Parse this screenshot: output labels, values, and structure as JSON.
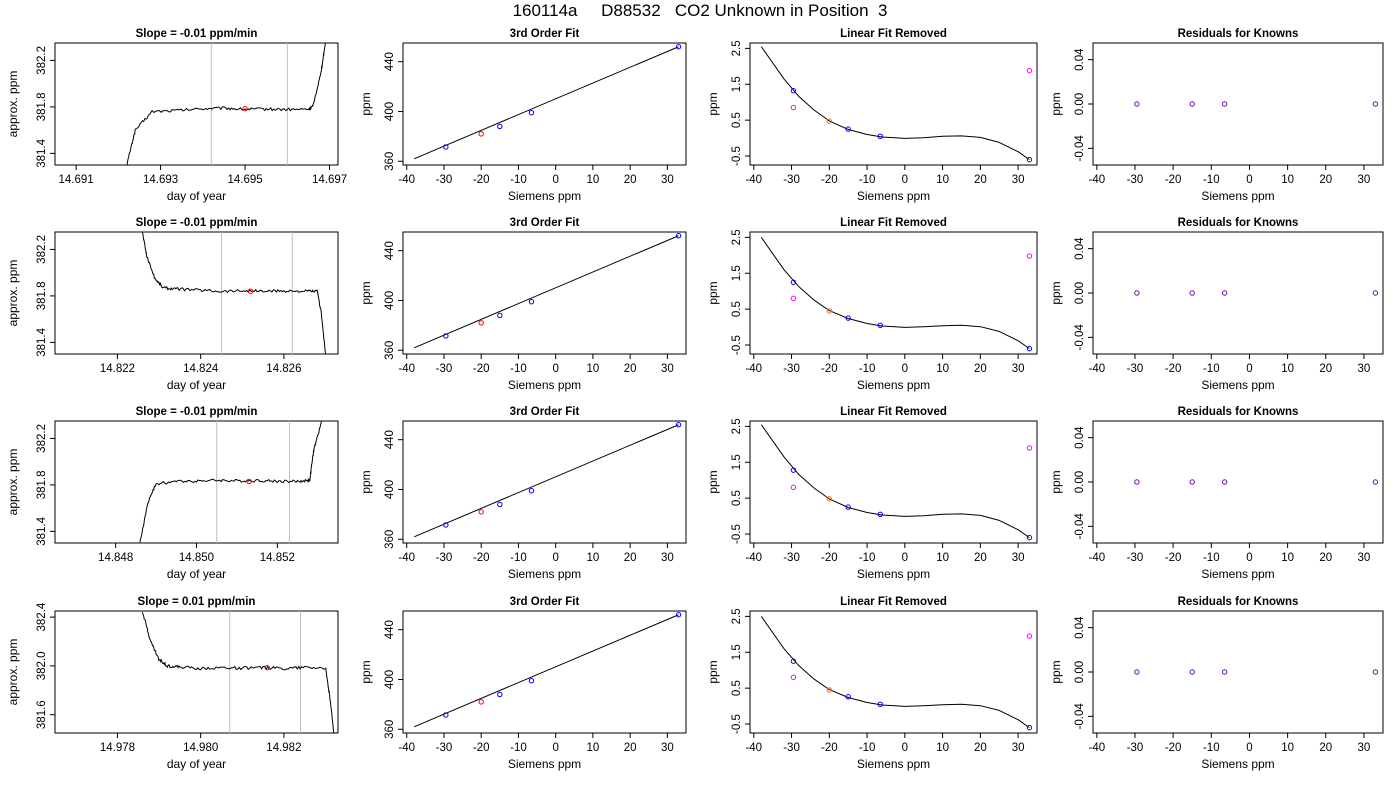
{
  "page": {
    "title": "160114a     D88532   CO2 Unknown in Position  3"
  },
  "styles": {
    "trace_color": "#000000",
    "axis_color": "#000000",
    "vline_color": "#bebebe",
    "marker_red": "#ff0000",
    "marker_blue": "#0000ff",
    "marker_magenta": "#ff00ff",
    "marker_purple": "#6a0dad"
  },
  "chart_data": [
    {
      "type": "line",
      "panel": "timeseries",
      "title": "Slope =  -0.01  ppm/min",
      "xlabel": "day of year",
      "ylabel": "approx. ppm",
      "xlim": [
        14.6905,
        14.6972
      ],
      "ylim": [
        381.3,
        382.35
      ],
      "xticks": [
        "14.691",
        "14.693",
        "14.695",
        "14.697"
      ],
      "xtick_values": [
        14.691,
        14.693,
        14.695,
        14.697
      ],
      "yticks": [
        "381.4",
        "381.8",
        "382.2"
      ],
      "ytick_values": [
        381.4,
        381.8,
        382.2
      ],
      "vlines": [
        14.6942,
        14.696
      ],
      "x": [
        14.6922,
        14.6924,
        14.6928,
        14.6934,
        14.694,
        14.6945,
        14.695,
        14.6955,
        14.696,
        14.6965,
        14.6966,
        14.6968,
        14.6969
      ],
      "y": [
        381.3,
        381.6,
        381.76,
        381.77,
        381.785,
        381.79,
        381.78,
        381.782,
        381.778,
        381.78,
        381.8,
        382.1,
        382.35
      ],
      "marker": {
        "x": 14.695,
        "y": 381.785
      }
    },
    {
      "type": "scatter",
      "panel": "fit",
      "title": "3rd Order Fit",
      "xlabel": "Siemens ppm",
      "ylabel": "ppm",
      "xlim": [
        -41,
        35
      ],
      "ylim": [
        357,
        455
      ],
      "xticks": [
        -40,
        -30,
        -20,
        -10,
        0,
        10,
        20,
        30
      ],
      "yticks": [
        360,
        400,
        440
      ],
      "line": [
        [
          -38,
          362
        ],
        [
          33,
          452
        ]
      ],
      "points_blue": [
        [
          -29.5,
          371.5
        ],
        [
          -15,
          388
        ],
        [
          -6.5,
          399
        ],
        [
          33,
          452
        ]
      ],
      "points_red": [
        [
          -20,
          382
        ]
      ]
    },
    {
      "type": "scatter",
      "panel": "linfit",
      "title": "Linear Fit Removed",
      "xlabel": "Siemens ppm",
      "ylabel": "ppm",
      "xlim": [
        -41,
        35
      ],
      "ylim": [
        -0.75,
        2.65
      ],
      "xticks": [
        -40,
        -30,
        -20,
        -10,
        0,
        10,
        20,
        30
      ],
      "yticks": [
        "-0.5",
        "0.5",
        "1.5",
        "2.5"
      ],
      "ytick_values": [
        -0.5,
        0.5,
        1.5,
        2.5
      ],
      "curve_knots": [
        [
          -38,
          2.55
        ],
        [
          -32,
          1.65
        ],
        [
          -28,
          1.15
        ],
        [
          -24,
          0.78
        ],
        [
          -20,
          0.48
        ],
        [
          -15,
          0.24
        ],
        [
          -10,
          0.1
        ],
        [
          -6,
          0.03
        ],
        [
          0,
          -0.01
        ],
        [
          5,
          0.01
        ],
        [
          10,
          0.05
        ],
        [
          15,
          0.06
        ],
        [
          20,
          0.02
        ],
        [
          25,
          -0.12
        ],
        [
          30,
          -0.38
        ],
        [
          33,
          -0.6
        ]
      ],
      "points_blue": [
        [
          -29.5,
          1.32
        ],
        [
          -15,
          0.25
        ],
        [
          -6.5,
          0.05
        ],
        [
          33,
          -0.6
        ]
      ],
      "points_orange": [
        [
          -20,
          0.47
        ]
      ],
      "points_magenta": [
        [
          -29.5,
          0.85
        ],
        [
          33,
          1.88
        ]
      ]
    },
    {
      "type": "scatter",
      "panel": "residuals",
      "title": "Residuals for Knowns",
      "xlabel": "Siemens ppm",
      "ylabel": "ppm",
      "xlim": [
        -41,
        35
      ],
      "ylim": [
        -0.055,
        0.055
      ],
      "xticks": [
        -40,
        -30,
        -20,
        -10,
        0,
        10,
        20,
        30
      ],
      "yticks": [
        "-0.04",
        "0.00",
        "0.04"
      ],
      "ytick_values": [
        -0.04,
        0.0,
        0.04
      ],
      "points_purple": [
        [
          -29.5,
          0
        ],
        [
          -15,
          0
        ],
        [
          -6.5,
          0
        ],
        [
          33,
          0
        ]
      ]
    },
    {
      "type": "line",
      "panel": "timeseries",
      "title": "Slope =  -0.01  ppm/min",
      "xlabel": "day of year",
      "ylabel": "approx. ppm",
      "xlim": [
        14.8205,
        14.8273
      ],
      "ylim": [
        381.3,
        382.35
      ],
      "xticks": [
        "14.822",
        "14.824",
        "14.826"
      ],
      "xtick_values": [
        14.822,
        14.824,
        14.826
      ],
      "yticks": [
        "381.4",
        "381.8",
        "382.2"
      ],
      "ytick_values": [
        381.4,
        381.8,
        382.2
      ],
      "vlines": [
        14.8245,
        14.8262
      ],
      "x": [
        14.8226,
        14.8227,
        14.8229,
        14.8231,
        14.8234,
        14.824,
        14.8245,
        14.825,
        14.8255,
        14.826,
        14.8265,
        14.8268,
        14.8269,
        14.827
      ],
      "y": [
        382.35,
        382.15,
        381.95,
        381.87,
        381.86,
        381.85,
        381.84,
        381.845,
        381.84,
        381.843,
        381.84,
        381.84,
        381.65,
        381.3
      ],
      "marker": {
        "x": 14.8252,
        "y": 381.84
      }
    },
    {
      "type": "scatter",
      "panel": "fit",
      "title": "3rd Order Fit",
      "xlabel": "Siemens ppm",
      "ylabel": "ppm",
      "xlim": [
        -41,
        35
      ],
      "ylim": [
        357,
        455
      ],
      "xticks": [
        -40,
        -30,
        -20,
        -10,
        0,
        10,
        20,
        30
      ],
      "yticks": [
        360,
        400,
        440
      ],
      "line": [
        [
          -38,
          362
        ],
        [
          33,
          452
        ]
      ],
      "points_blue": [
        [
          -29.5,
          371.5
        ],
        [
          -15,
          388
        ],
        [
          -6.5,
          399
        ],
        [
          33,
          452
        ]
      ],
      "points_red": [
        [
          -20,
          382
        ]
      ]
    },
    {
      "type": "scatter",
      "panel": "linfit",
      "title": "Linear Fit Removed",
      "xlabel": "Siemens ppm",
      "ylabel": "ppm",
      "xlim": [
        -41,
        35
      ],
      "ylim": [
        -0.75,
        2.65
      ],
      "xticks": [
        -40,
        -30,
        -20,
        -10,
        0,
        10,
        20,
        30
      ],
      "yticks": [
        "-0.5",
        "0.5",
        "1.5",
        "2.5"
      ],
      "ytick_values": [
        -0.5,
        0.5,
        1.5,
        2.5
      ],
      "curve_knots": [
        [
          -38,
          2.5
        ],
        [
          -32,
          1.6
        ],
        [
          -28,
          1.12
        ],
        [
          -24,
          0.75
        ],
        [
          -20,
          0.46
        ],
        [
          -15,
          0.24
        ],
        [
          -10,
          0.1
        ],
        [
          -6,
          0.03
        ],
        [
          0,
          -0.01
        ],
        [
          5,
          0.01
        ],
        [
          10,
          0.04
        ],
        [
          15,
          0.05
        ],
        [
          20,
          0.01
        ],
        [
          25,
          -0.12
        ],
        [
          30,
          -0.38
        ],
        [
          33,
          -0.6
        ]
      ],
      "points_blue": [
        [
          -29.5,
          1.25
        ],
        [
          -15,
          0.25
        ],
        [
          -6.5,
          0.05
        ],
        [
          33,
          -0.6
        ]
      ],
      "points_orange": [
        [
          -20,
          0.45
        ]
      ],
      "points_magenta": [
        [
          -29.5,
          0.8
        ],
        [
          33,
          1.98
        ]
      ]
    },
    {
      "type": "scatter",
      "panel": "residuals",
      "title": "Residuals for Knowns",
      "xlabel": "Siemens ppm",
      "ylabel": "ppm",
      "xlim": [
        -41,
        35
      ],
      "ylim": [
        -0.055,
        0.055
      ],
      "xticks": [
        -40,
        -30,
        -20,
        -10,
        0,
        10,
        20,
        30
      ],
      "yticks": [
        "-0.04",
        "0.00",
        "0.04"
      ],
      "ytick_values": [
        -0.04,
        0.0,
        0.04
      ],
      "points_purple": [
        [
          -29.5,
          0
        ],
        [
          -15,
          0
        ],
        [
          -6.5,
          0
        ],
        [
          33,
          0
        ]
      ]
    },
    {
      "type": "line",
      "panel": "timeseries",
      "title": "Slope =  -0.01  ppm/min",
      "xlabel": "day of year",
      "ylabel": "approx. ppm",
      "xlim": [
        14.8465,
        14.8535
      ],
      "ylim": [
        381.3,
        382.35
      ],
      "xticks": [
        "14.848",
        "14.850",
        "14.852"
      ],
      "xtick_values": [
        14.848,
        14.85,
        14.852
      ],
      "yticks": [
        "381.4",
        "381.8",
        "382.2"
      ],
      "ytick_values": [
        381.4,
        381.8,
        382.2
      ],
      "vlines": [
        14.8505,
        14.8523
      ],
      "x": [
        14.8486,
        14.8488,
        14.849,
        14.8495,
        14.85,
        14.8505,
        14.851,
        14.8515,
        14.852,
        14.8525,
        14.8528,
        14.8529,
        14.8531
      ],
      "y": [
        381.3,
        381.65,
        381.81,
        381.83,
        381.835,
        381.84,
        381.835,
        381.838,
        381.832,
        381.83,
        381.84,
        382.1,
        382.35
      ],
      "marker": {
        "x": 14.8513,
        "y": 381.83
      }
    },
    {
      "type": "scatter",
      "panel": "fit",
      "title": "3rd Order Fit",
      "xlabel": "Siemens ppm",
      "ylabel": "ppm",
      "xlim": [
        -41,
        35
      ],
      "ylim": [
        357,
        455
      ],
      "xticks": [
        -40,
        -30,
        -20,
        -10,
        0,
        10,
        20,
        30
      ],
      "yticks": [
        360,
        400,
        440
      ],
      "line": [
        [
          -38,
          362
        ],
        [
          33,
          452
        ]
      ],
      "points_blue": [
        [
          -29.5,
          371.5
        ],
        [
          -15,
          388
        ],
        [
          -6.5,
          399
        ],
        [
          33,
          452
        ]
      ],
      "points_red": [
        [
          -20,
          382
        ]
      ]
    },
    {
      "type": "scatter",
      "panel": "linfit",
      "title": "Linear Fit Removed",
      "xlabel": "Siemens ppm",
      "ylabel": "ppm",
      "xlim": [
        -41,
        35
      ],
      "ylim": [
        -0.75,
        2.65
      ],
      "xticks": [
        -40,
        -30,
        -20,
        -10,
        0,
        10,
        20,
        30
      ],
      "yticks": [
        "-0.5",
        "0.5",
        "1.5",
        "2.5"
      ],
      "ytick_values": [
        -0.5,
        0.5,
        1.5,
        2.5
      ],
      "curve_knots": [
        [
          -38,
          2.55
        ],
        [
          -32,
          1.65
        ],
        [
          -28,
          1.15
        ],
        [
          -24,
          0.78
        ],
        [
          -20,
          0.48
        ],
        [
          -15,
          0.24
        ],
        [
          -10,
          0.1
        ],
        [
          -6,
          0.03
        ],
        [
          0,
          -0.01
        ],
        [
          5,
          0.01
        ],
        [
          10,
          0.05
        ],
        [
          15,
          0.06
        ],
        [
          20,
          0.02
        ],
        [
          25,
          -0.12
        ],
        [
          30,
          -0.38
        ],
        [
          33,
          -0.6
        ]
      ],
      "points_blue": [
        [
          -29.5,
          1.28
        ],
        [
          -15,
          0.25
        ],
        [
          -6.5,
          0.05
        ],
        [
          33,
          -0.6
        ]
      ],
      "points_orange": [
        [
          -20,
          0.48
        ]
      ],
      "points_magenta": [
        [
          -29.5,
          0.8
        ],
        [
          33,
          1.9
        ]
      ]
    },
    {
      "type": "scatter",
      "panel": "residuals",
      "title": "Residuals for Knowns",
      "xlabel": "Siemens ppm",
      "ylabel": "ppm",
      "xlim": [
        -41,
        35
      ],
      "ylim": [
        -0.055,
        0.055
      ],
      "xticks": [
        -40,
        -30,
        -20,
        -10,
        0,
        10,
        20,
        30
      ],
      "yticks": [
        "-0.04",
        "0.00",
        "0.04"
      ],
      "ytick_values": [
        -0.04,
        0.0,
        0.04
      ],
      "points_purple": [
        [
          -29.5,
          0
        ],
        [
          -15,
          0
        ],
        [
          -6.5,
          0
        ],
        [
          33,
          0
        ]
      ]
    },
    {
      "type": "line",
      "panel": "timeseries",
      "title": "Slope =  0.01  ppm/min",
      "xlabel": "day of year",
      "ylabel": "approx. ppm",
      "xlim": [
        14.9765,
        14.9833
      ],
      "ylim": [
        381.45,
        382.45
      ],
      "xticks": [
        "14.978",
        "14.980",
        "14.982"
      ],
      "xtick_values": [
        14.978,
        14.98,
        14.982
      ],
      "yticks": [
        "381.6",
        "382.0",
        "382.4"
      ],
      "ytick_values": [
        381.6,
        382.0,
        382.4
      ],
      "vlines": [
        14.9807,
        14.9824
      ],
      "x": [
        14.9786,
        14.9788,
        14.979,
        14.9792,
        14.9795,
        14.98,
        14.9805,
        14.981,
        14.9815,
        14.982,
        14.9825,
        14.983,
        14.9831,
        14.9832
      ],
      "y": [
        382.45,
        382.2,
        382.05,
        382.0,
        381.99,
        381.98,
        381.985,
        381.982,
        381.985,
        381.98,
        381.99,
        381.985,
        381.75,
        381.45
      ],
      "marker": {
        "x": 14.9816,
        "y": 381.985
      }
    },
    {
      "type": "scatter",
      "panel": "fit",
      "title": "3rd Order Fit",
      "xlabel": "Siemens ppm",
      "ylabel": "ppm",
      "xlim": [
        -41,
        35
      ],
      "ylim": [
        357,
        455
      ],
      "xticks": [
        -40,
        -30,
        -20,
        -10,
        0,
        10,
        20,
        30
      ],
      "yticks": [
        360,
        400,
        440
      ],
      "line": [
        [
          -38,
          362
        ],
        [
          33,
          452
        ]
      ],
      "points_blue": [
        [
          -29.5,
          371.5
        ],
        [
          -15,
          388
        ],
        [
          -6.5,
          399
        ],
        [
          33,
          452
        ]
      ],
      "points_red": [
        [
          -20,
          382
        ]
      ]
    },
    {
      "type": "scatter",
      "panel": "linfit",
      "title": "Linear Fit Removed",
      "xlabel": "Siemens ppm",
      "ylabel": "ppm",
      "xlim": [
        -41,
        35
      ],
      "ylim": [
        -0.75,
        2.65
      ],
      "xticks": [
        -40,
        -30,
        -20,
        -10,
        0,
        10,
        20,
        30
      ],
      "yticks": [
        "-0.5",
        "0.5",
        "1.5",
        "2.5"
      ],
      "ytick_values": [
        -0.5,
        0.5,
        1.5,
        2.5
      ],
      "curve_knots": [
        [
          -38,
          2.5
        ],
        [
          -32,
          1.6
        ],
        [
          -28,
          1.12
        ],
        [
          -24,
          0.75
        ],
        [
          -20,
          0.46
        ],
        [
          -15,
          0.24
        ],
        [
          -10,
          0.1
        ],
        [
          -6,
          0.03
        ],
        [
          0,
          -0.01
        ],
        [
          5,
          0.01
        ],
        [
          10,
          0.04
        ],
        [
          15,
          0.05
        ],
        [
          20,
          0.01
        ],
        [
          25,
          -0.12
        ],
        [
          30,
          -0.38
        ],
        [
          33,
          -0.6
        ]
      ],
      "points_blue": [
        [
          -29.5,
          1.25
        ],
        [
          -15,
          0.26
        ],
        [
          -6.5,
          0.05
        ],
        [
          33,
          -0.6
        ]
      ],
      "points_orange": [
        [
          -20,
          0.45
        ]
      ],
      "points_magenta": [
        [
          -29.5,
          0.8
        ],
        [
          33,
          1.95
        ]
      ]
    },
    {
      "type": "scatter",
      "panel": "residuals",
      "title": "Residuals for Knowns",
      "xlabel": "Siemens ppm",
      "ylabel": "ppm",
      "xlim": [
        -41,
        35
      ],
      "ylim": [
        -0.055,
        0.055
      ],
      "xticks": [
        -40,
        -30,
        -20,
        -10,
        0,
        10,
        20,
        30
      ],
      "yticks": [
        "-0.04",
        "0.00",
        "0.04"
      ],
      "ytick_values": [
        -0.04,
        0.0,
        0.04
      ],
      "points_purple": [
        [
          -29.5,
          0
        ],
        [
          -15,
          0
        ],
        [
          -6.5,
          0
        ],
        [
          33,
          0
        ]
      ]
    }
  ]
}
